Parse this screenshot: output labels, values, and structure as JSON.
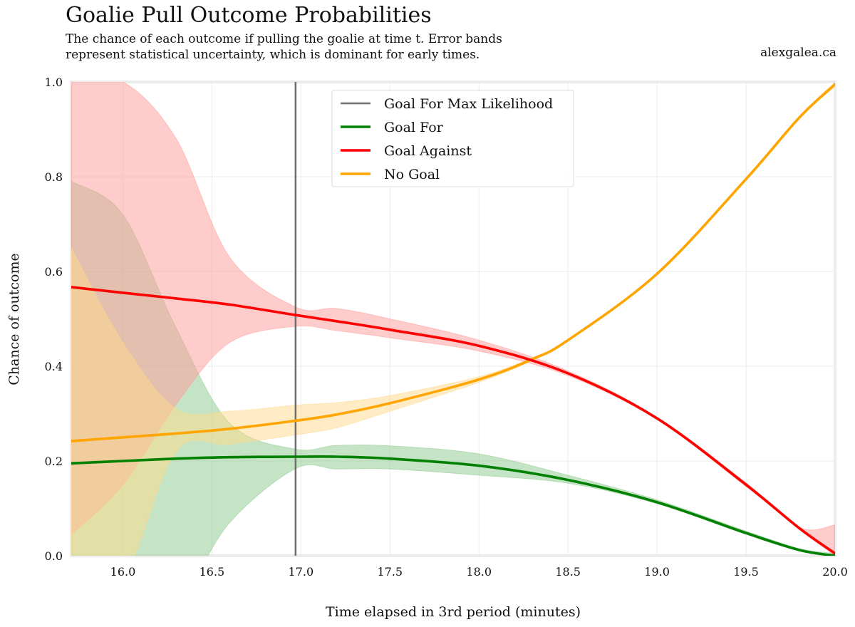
{
  "chart_data": {
    "type": "line",
    "title": "Goalie Pull Outcome Probabilities",
    "subtitle_lines": [
      "The chance of each outcome if pulling the goalie at time t. Error bands",
      "represent statistical uncertainty, which is dominant for early times."
    ],
    "credit": "alexgalea.ca",
    "xlabel": "Time elapsed in 3rd period (minutes)",
    "ylabel": "Chance of outcome",
    "xlim": [
      15.71,
      20.0
    ],
    "ylim": [
      0.0,
      1.0
    ],
    "xticks": [
      16.0,
      16.5,
      17.0,
      17.5,
      18.0,
      18.5,
      19.0,
      19.5,
      20.0
    ],
    "xtick_labels": [
      "16.0",
      "16.5",
      "17.0",
      "17.5",
      "18.0",
      "18.5",
      "19.0",
      "19.5",
      "20.0"
    ],
    "yticks": [
      0.0,
      0.2,
      0.4,
      0.6,
      0.8,
      1.0
    ],
    "ytick_labels": [
      "0.0",
      "0.2",
      "0.4",
      "0.6",
      "0.8",
      "1.0"
    ],
    "grid": true,
    "legend_position": "top-center",
    "max_likelihood_x": 16.97,
    "series": [
      {
        "name": "Goal For Max Likelihood",
        "kind": "vline",
        "color": "#6e6e6e"
      },
      {
        "name": "Goal For",
        "color": "#008000",
        "band_color": "#8cc98c",
        "x": [
          15.71,
          16.0,
          16.3,
          16.6,
          16.97,
          17.2,
          17.5,
          18.0,
          18.5,
          19.0,
          19.5,
          19.8,
          20.0
        ],
        "y": [
          0.195,
          0.2,
          0.205,
          0.208,
          0.209,
          0.209,
          0.205,
          0.19,
          0.16,
          0.113,
          0.048,
          0.012,
          0.0
        ],
        "upper": [
          0.79,
          0.72,
          0.48,
          0.28,
          0.225,
          0.233,
          0.232,
          0.215,
          0.17,
          0.118,
          0.052,
          0.015,
          0.005
        ],
        "lower": [
          -0.1,
          -0.1,
          -0.1,
          0.07,
          0.184,
          0.183,
          0.183,
          0.17,
          0.153,
          0.11,
          0.045,
          0.01,
          0.0
        ]
      },
      {
        "name": "Goal Against",
        "color": "#ff0000",
        "band_color": "#ff9a9a",
        "x": [
          15.71,
          16.0,
          16.3,
          16.6,
          16.97,
          17.2,
          17.5,
          18.0,
          18.5,
          19.0,
          19.5,
          19.8,
          20.0
        ],
        "y": [
          0.567,
          0.555,
          0.543,
          0.53,
          0.508,
          0.495,
          0.477,
          0.443,
          0.385,
          0.29,
          0.15,
          0.058,
          0.005
        ],
        "upper": [
          1.0,
          1.0,
          0.88,
          0.63,
          0.525,
          0.522,
          0.5,
          0.455,
          0.39,
          0.293,
          0.154,
          0.06,
          0.065
        ],
        "lower": [
          0.045,
          0.15,
          0.32,
          0.45,
          0.484,
          0.475,
          0.46,
          0.432,
          0.38,
          0.287,
          0.146,
          0.055,
          0.0
        ]
      },
      {
        "name": "No Goal",
        "color": "#ffa500",
        "band_color": "#ffd98a",
        "x": [
          15.71,
          16.0,
          16.3,
          16.6,
          16.97,
          17.2,
          17.5,
          18.0,
          18.3,
          18.5,
          19.0,
          19.5,
          19.8,
          20.0
        ],
        "y": [
          0.242,
          0.25,
          0.258,
          0.268,
          0.285,
          0.298,
          0.322,
          0.372,
          0.415,
          0.455,
          0.595,
          0.795,
          0.925,
          0.995
        ],
        "upper": [
          0.65,
          0.45,
          0.31,
          0.305,
          0.318,
          0.323,
          0.338,
          0.378,
          0.418,
          0.457,
          0.597,
          0.797,
          0.927,
          1.0
        ],
        "lower": [
          -0.1,
          -0.05,
          0.22,
          0.235,
          0.255,
          0.27,
          0.305,
          0.366,
          0.412,
          0.453,
          0.593,
          0.793,
          0.923,
          0.99
        ]
      }
    ]
  }
}
